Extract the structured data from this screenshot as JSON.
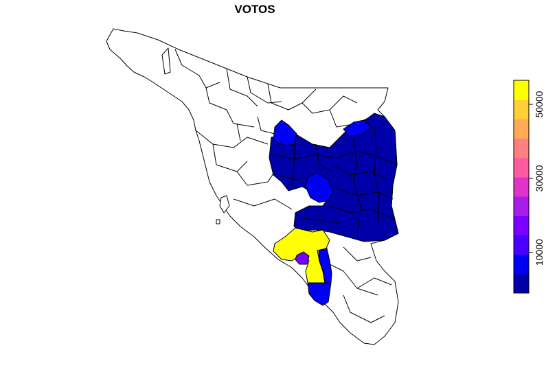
{
  "title": "VOTOS",
  "legend": {
    "ticks": [
      {
        "value": 10000,
        "label": "10000"
      },
      {
        "value": 30000,
        "label": "30000"
      },
      {
        "value": 50000,
        "label": "50000"
      }
    ],
    "min": -1000,
    "max": 56500,
    "colors": [
      "#0000a8",
      "#0000f5",
      "#4a00ff",
      "#7a00ff",
      "#a81ee8",
      "#e033c8",
      "#ff5aa0",
      "#ff8080",
      "#ffaa55",
      "#ffd03a",
      "#ffff00"
    ],
    "placement": "right"
  },
  "map": {
    "region_fill": {
      "none": "#ffffff",
      "dark_blue": "#0000a8",
      "blue": "#0000f5",
      "violet": "#7a00ff",
      "yellow": "#ffff00"
    },
    "highlighted_regions": [
      {
        "name_key": "north-east",
        "color": "dark_blue"
      },
      {
        "name_key": "north-pocket",
        "color": "blue"
      },
      {
        "name_key": "central-pocket",
        "color": "blue"
      },
      {
        "name_key": "east-notch",
        "color": "blue"
      },
      {
        "name_key": "south-central",
        "color": "dark_blue"
      },
      {
        "name_key": "south-yellow",
        "color": "yellow"
      },
      {
        "name_key": "south-violet",
        "color": "violet"
      },
      {
        "name_key": "south-blue-strip",
        "color": "blue"
      },
      {
        "name_key": "far-south-blue",
        "color": "blue"
      }
    ]
  }
}
